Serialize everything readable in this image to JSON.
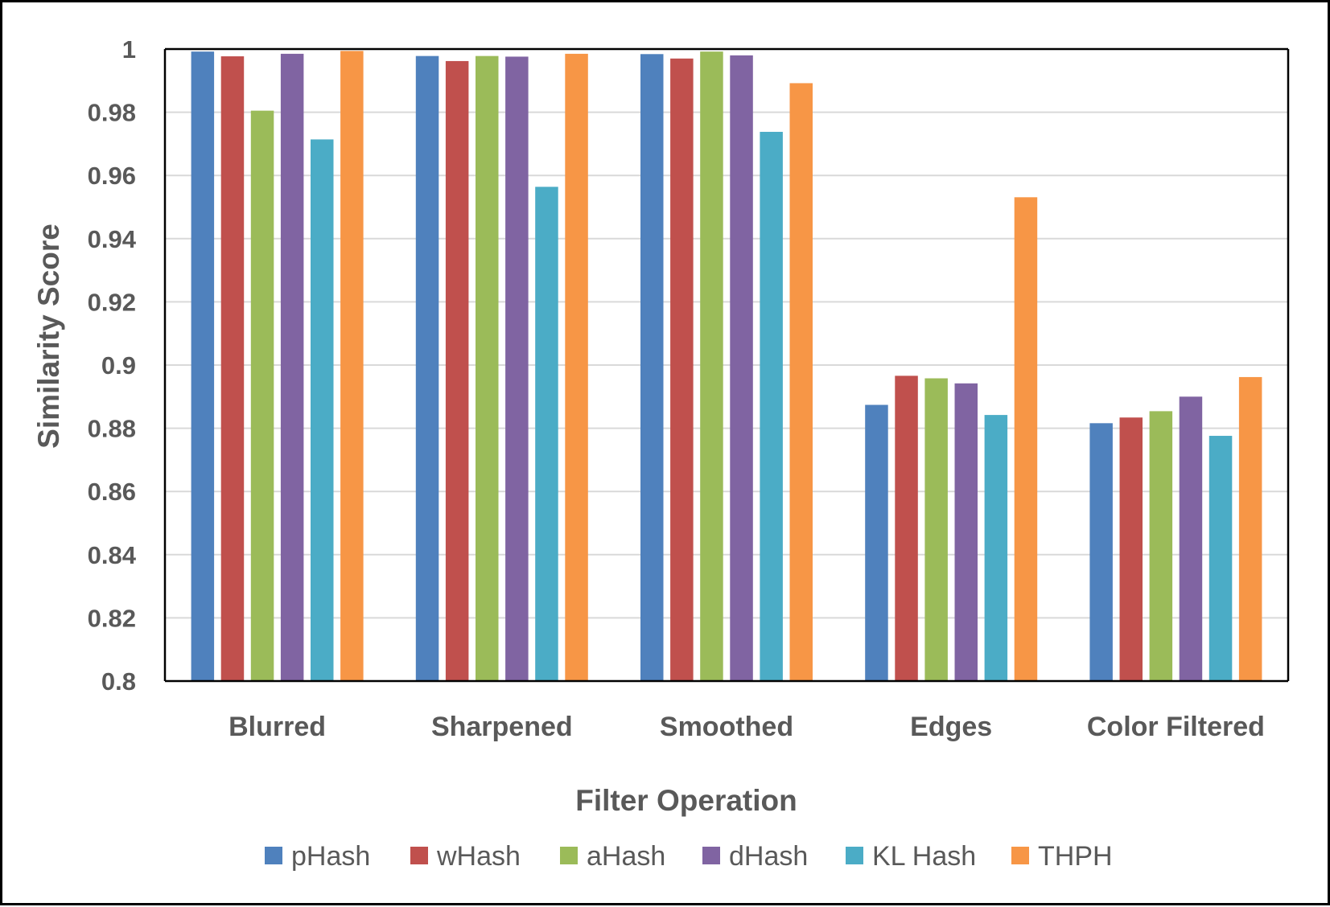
{
  "chart_data": {
    "type": "bar",
    "title": "",
    "xlabel": "Filter Operation",
    "ylabel": "Similarity Score",
    "ylim": [
      0.8,
      1.0
    ],
    "yticks": [
      0.8,
      0.82,
      0.84,
      0.86,
      0.88,
      0.9,
      0.92,
      0.94,
      0.96,
      0.98,
      1
    ],
    "ytick_labels": [
      "0.8",
      "0.82",
      "0.84",
      "0.86",
      "0.88",
      "0.9",
      "0.92",
      "0.94",
      "0.96",
      "0.98",
      "1"
    ],
    "grid": true,
    "legend_position": "bottom",
    "categories": [
      "Blurred",
      "Sharpened",
      "Smoothed",
      "Edges",
      "Color Filtered"
    ],
    "series": [
      {
        "name": "pHash",
        "color": "#4F81BD",
        "values": [
          0.9992,
          0.9978,
          0.9984,
          0.8874,
          0.8816
        ]
      },
      {
        "name": "wHash",
        "color": "#C0504D",
        "values": [
          0.9977,
          0.9962,
          0.997,
          0.8966,
          0.8834
        ]
      },
      {
        "name": "aHash",
        "color": "#9BBB59",
        "values": [
          0.9805,
          0.9978,
          0.9992,
          0.8958,
          0.8854
        ]
      },
      {
        "name": "dHash",
        "color": "#8064A2",
        "values": [
          0.9985,
          0.9976,
          0.998,
          0.8942,
          0.89
        ]
      },
      {
        "name": "KL Hash",
        "color": "#4BACC6",
        "values": [
          0.9714,
          0.9564,
          0.9738,
          0.8842,
          0.8776
        ]
      },
      {
        "name": "THPH",
        "color": "#F79646",
        "values": [
          0.9994,
          0.9985,
          0.9892,
          0.9531,
          0.8962
        ]
      }
    ]
  }
}
